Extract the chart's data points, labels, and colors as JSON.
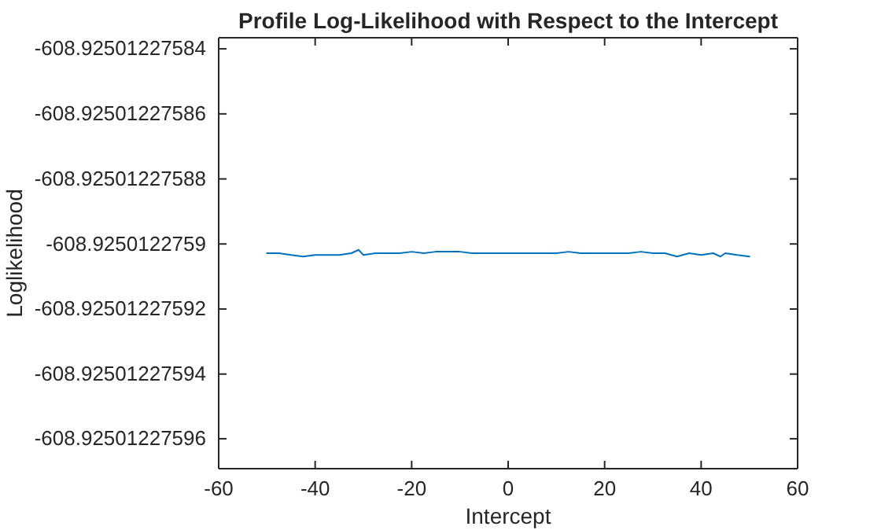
{
  "chart_data": {
    "type": "line",
    "title": "Profile Log-Likelihood with Respect to the Intercept",
    "xlabel": "Intercept",
    "ylabel": "Loglikelihood",
    "x": [
      -50,
      -47.5,
      -45,
      -42.5,
      -40,
      -37.5,
      -35,
      -32.5,
      -31,
      -30,
      -27.5,
      -25,
      -22.5,
      -20,
      -17.5,
      -15,
      -12.5,
      -10,
      -7.5,
      -5,
      -2.5,
      0,
      2.5,
      5,
      7.5,
      10,
      12.5,
      15,
      17.5,
      20,
      22.5,
      25,
      27.5,
      30,
      32.5,
      35,
      37.5,
      40,
      42.5,
      44,
      45,
      47.5,
      50
    ],
    "series": [
      {
        "color": "#0072bd",
        "values": [
          -608.9250122759029,
          -608.9250122759029,
          -608.9250122759034,
          -608.9250122759039,
          -608.9250122759034,
          -608.9250122759034,
          -608.9250122759034,
          -608.9250122759029,
          -608.9250122759018,
          -608.9250122759034,
          -608.9250122759029,
          -608.9250122759029,
          -608.9250122759029,
          -608.9250122759024,
          -608.9250122759029,
          -608.9250122759024,
          -608.9250122759024,
          -608.9250122759024,
          -608.9250122759029,
          -608.9250122759029,
          -608.9250122759029,
          -608.9250122759029,
          -608.9250122759029,
          -608.9250122759029,
          -608.9250122759029,
          -608.9250122759029,
          -608.9250122759024,
          -608.9250122759029,
          -608.9250122759029,
          -608.9250122759029,
          -608.9250122759029,
          -608.9250122759029,
          -608.9250122759024,
          -608.9250122759029,
          -608.9250122759029,
          -608.9250122759039,
          -608.9250122759029,
          -608.9250122759034,
          -608.9250122759029,
          -608.9250122759039,
          -608.9250122759029,
          -608.9250122759034,
          -608.9250122759039
        ]
      }
    ],
    "xlim": [
      -60,
      60
    ],
    "xticks": [
      -60,
      -40,
      -20,
      0,
      20,
      40,
      60
    ],
    "ylim": [
      -608.9250122759692,
      -608.9250122758366
    ],
    "yticks": [
      {
        "value": -608.92501227584,
        "label": "-608.92501227584"
      },
      {
        "value": -608.92501227586,
        "label": "-608.92501227586"
      },
      {
        "value": -608.92501227588,
        "label": "-608.92501227588"
      },
      {
        "value": -608.9250122759,
        "label": "-608.9250122759"
      },
      {
        "value": -608.92501227592,
        "label": "-608.92501227592"
      },
      {
        "value": -608.92501227594,
        "label": "-608.92501227594"
      },
      {
        "value": -608.92501227596,
        "label": "-608.92501227596"
      }
    ],
    "grid": false,
    "marker": "none",
    "line_style": "solid"
  }
}
